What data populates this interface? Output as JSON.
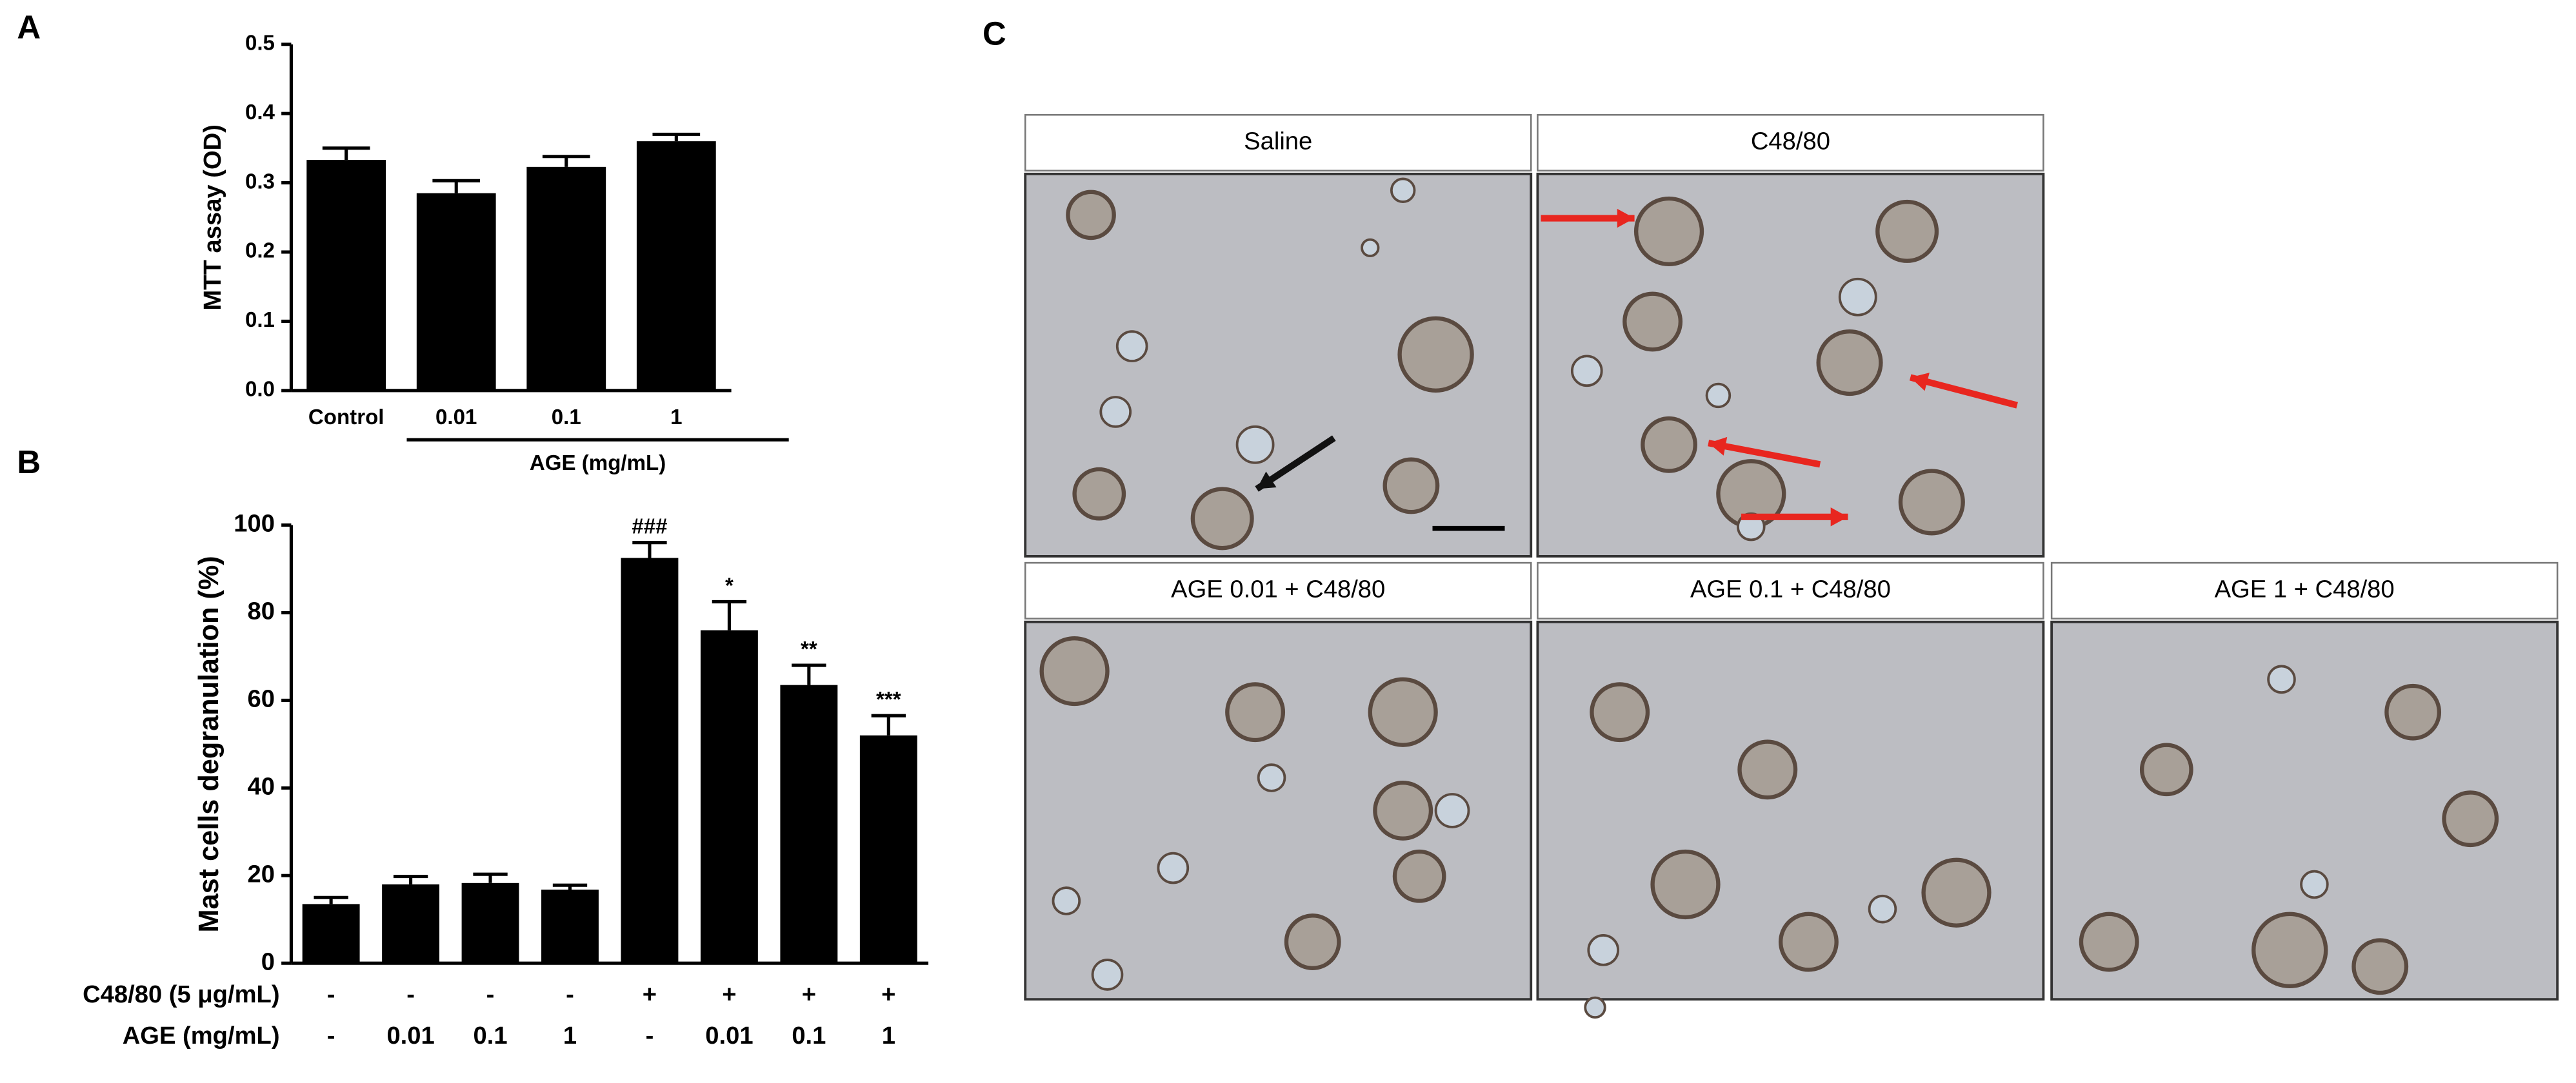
{
  "panel_labels": [
    "A",
    "B",
    "C"
  ],
  "chart_data": [
    {
      "type": "bar",
      "ylabel": "MTT assay (OD)",
      "color": "#000000",
      "categories": [
        "Control",
        "0.01",
        "0.1",
        "1"
      ],
      "values": [
        0.333,
        0.285,
        0.323,
        0.36
      ],
      "errors": [
        0.017,
        0.018,
        0.015,
        0.01
      ],
      "group_label": "AGE (mg/mL)",
      "ylim": [
        0,
        0.5
      ],
      "yticks": [
        {
          "value": 0,
          "label": "0.0"
        },
        0.1,
        0.2,
        0.3,
        0.4,
        0.5
      ]
    },
    {
      "type": "bar",
      "ylabel": "Mast cells degranulation (%)",
      "color": "#000000",
      "values": [
        13.5,
        18,
        18.3,
        16.8,
        92.5,
        76,
        63.5,
        52
      ],
      "errors": [
        1.5,
        1.8,
        2,
        1,
        3.5,
        6.5,
        4.5,
        4.5
      ],
      "annotations": [
        null,
        null,
        null,
        null,
        "###",
        "*",
        "**",
        "***"
      ],
      "rows": [
        {
          "label": "C48/80 (5 μg/mL)",
          "values": [
            "-",
            "-",
            "-",
            "-",
            "+",
            "+",
            "+",
            "+"
          ]
        },
        {
          "label": "AGE (mg/mL)",
          "values": [
            "-",
            "0.01",
            "0.1",
            "1",
            "-",
            "0.01",
            "0.1",
            "1"
          ]
        }
      ],
      "ylim": [
        0,
        100
      ],
      "yticks": [
        0,
        20,
        40,
        60,
        80,
        100
      ]
    }
  ],
  "micrographs": [
    "Saline",
    "C48/80",
    "AGE 0.01 + C48/80",
    "AGE 0.1 + C48/80",
    "AGE 1 + C48/80"
  ]
}
